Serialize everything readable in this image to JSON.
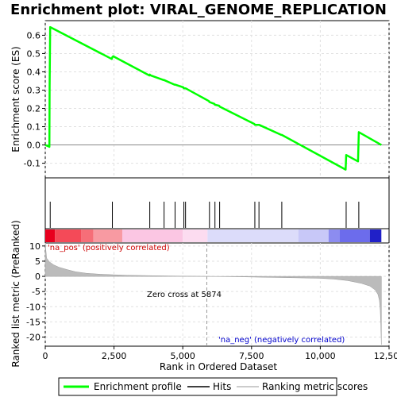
{
  "chart_data": {
    "type": "line",
    "title": "Enrichment plot: VIRAL_GENOME_REPLICATION",
    "xlabel": "Rank in Ordered Dataset",
    "ylabel_top": "Enrichment score (ES)",
    "ylabel_bottom": "Ranked list metric (PreRanked)",
    "xlim": [
      0,
      12500
    ],
    "x_ticks": [
      0,
      2500,
      5000,
      7500,
      10000,
      12500
    ],
    "x_tick_labels": [
      "0",
      "2,500",
      "5,000",
      "7,500",
      "10,000",
      "12,500"
    ],
    "es_ylim": [
      -0.18,
      0.68
    ],
    "es_ticks": [
      -0.1,
      0.0,
      0.1,
      0.2,
      0.3,
      0.4,
      0.5,
      0.6
    ],
    "es_tick_labels": [
      "-0.1",
      "0.0",
      "0.1",
      "0.2",
      "0.3",
      "0.4",
      "0.5",
      "0.6"
    ],
    "metric_ylim": [
      -23,
      11
    ],
    "metric_ticks": [
      -20,
      -15,
      -10,
      -5,
      0,
      5,
      10
    ],
    "metric_tick_labels": [
      "-20",
      "-15",
      "-10",
      "-5",
      "0",
      "5",
      "10"
    ],
    "grid": true,
    "legend_position": "bottom",
    "series": [
      {
        "name": "Enrichment profile",
        "color": "#00ff00",
        "x": [
          0,
          150,
          160,
          180,
          2420,
          2440,
          2470,
          3790,
          3800,
          3840,
          4300,
          4320,
          4700,
          4720,
          5020,
          5040,
          5080,
          5100,
          5950,
          5970,
          6150,
          6170,
          6320,
          6340,
          7600,
          7620,
          7750,
          7770,
          8580,
          8600,
          10920,
          10940,
          11370,
          11400,
          12220
        ],
        "y": [
          0.0,
          -0.01,
          0.32,
          0.645,
          0.47,
          0.48,
          0.485,
          0.38,
          0.385,
          0.38,
          0.355,
          0.355,
          0.33,
          0.33,
          0.315,
          0.31,
          0.31,
          0.31,
          0.24,
          0.235,
          0.225,
          0.22,
          0.215,
          0.21,
          0.115,
          0.11,
          0.11,
          0.11,
          0.055,
          0.055,
          -0.135,
          -0.055,
          -0.09,
          0.07,
          0.0
        ]
      }
    ],
    "hits": [
      180,
      2440,
      3800,
      4320,
      4720,
      5040,
      5100,
      5970,
      6170,
      6340,
      7620,
      7770,
      8600,
      10940,
      11400
    ],
    "ranking_metric": {
      "name": "Ranking metric scores",
      "x": [
        0,
        50,
        150,
        300,
        500,
        800,
        1100,
        1500,
        2000,
        2500,
        3000,
        4000,
        5000,
        5874,
        7000,
        8000,
        9000,
        10000,
        10500,
        11000,
        11500,
        11800,
        12000,
        12100,
        12150,
        12180,
        12200,
        12220
      ],
      "y": [
        10.8,
        6.0,
        4.8,
        3.8,
        3.0,
        2.2,
        1.5,
        1.0,
        0.7,
        0.5,
        0.35,
        0.2,
        0.08,
        0.0,
        -0.15,
        -0.3,
        -0.45,
        -0.65,
        -0.9,
        -1.4,
        -2.3,
        -3.2,
        -4.5,
        -6.0,
        -8.0,
        -11.0,
        -16.0,
        -22.5
      ]
    },
    "zero_cross": 5874,
    "annotations": {
      "pos_label": "'na_pos' (positively correlated)",
      "neg_label": "'na_neg' (negatively correlated)",
      "zero_cross_label": "Zero cross at 5874"
    },
    "colors": {
      "pos_annot": "#cc0000",
      "neg_annot": "#0000cc",
      "hit": "#000000",
      "metric_fill": "#bbbbbb",
      "grid": "#e0e0e0"
    },
    "heatmap": [
      {
        "x0": 0,
        "x1": 350,
        "color": "#e8001e"
      },
      {
        "x0": 350,
        "x1": 1300,
        "color": "#f44a58"
      },
      {
        "x0": 1300,
        "x1": 1750,
        "color": "#f66e78"
      },
      {
        "x0": 1750,
        "x1": 2800,
        "color": "#f89aa2"
      },
      {
        "x0": 2800,
        "x1": 5000,
        "color": "#fbc6e3"
      },
      {
        "x0": 5000,
        "x1": 5900,
        "color": "#fcdcf0"
      },
      {
        "x0": 5900,
        "x1": 9200,
        "color": "#dcdcfa"
      },
      {
        "x0": 9200,
        "x1": 10300,
        "color": "#c8c8f8"
      },
      {
        "x0": 10300,
        "x1": 10700,
        "color": "#8c8cf0"
      },
      {
        "x0": 10700,
        "x1": 11800,
        "color": "#6c6cec"
      },
      {
        "x0": 11800,
        "x1": 12220,
        "color": "#2020c8"
      }
    ]
  }
}
